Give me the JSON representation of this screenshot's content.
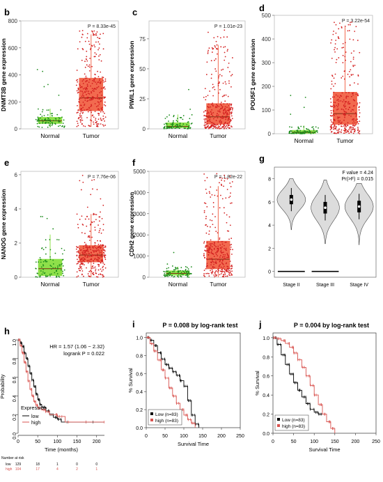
{
  "panels": {
    "b": {
      "letter": "b"
    },
    "c": {
      "letter": "c"
    },
    "d": {
      "letter": "d"
    },
    "e": {
      "letter": "e"
    },
    "f": {
      "letter": "f"
    },
    "g": {
      "letter": "g"
    },
    "h": {
      "letter": "h"
    },
    "i": {
      "letter": "i"
    },
    "j": {
      "letter": "j"
    }
  },
  "colors": {
    "normal_box": "#8ee04a",
    "normal_point": "#1a8a1a",
    "tumor_box": "#f26a4f",
    "tumor_point": "#d42020",
    "violin_fill": "#dcdcdc",
    "km_low": "#000000",
    "km_high": "#d9534f"
  },
  "chart_data": [
    {
      "id": "b",
      "type": "box",
      "ylabel": "DNMT3B gene expression",
      "ylim": [
        0,
        800
      ],
      "yticks": [
        0,
        200,
        400,
        600,
        800
      ],
      "pvalue": "P = 8.33e-45",
      "categories": [
        "Normal",
        "Tumor"
      ],
      "groups": [
        {
          "name": "Normal",
          "q1": 40,
          "median": 60,
          "q3": 85,
          "low": 10,
          "high": 150,
          "n": 90,
          "max_outlier": 460
        },
        {
          "name": "Tumor",
          "q1": 135,
          "median": 230,
          "q3": 375,
          "low": 15,
          "high": 700,
          "n": 320,
          "max_outlier": 730
        }
      ]
    },
    {
      "id": "c",
      "type": "box",
      "ylabel": "PIWIL1 gene expression",
      "ylim": [
        0,
        90
      ],
      "yticks": [
        0,
        25,
        50,
        75
      ],
      "pvalue": "P = 1.01e-23",
      "categories": [
        "Normal",
        "Tumor"
      ],
      "groups": [
        {
          "name": "Normal",
          "q1": 1,
          "median": 2,
          "q3": 5,
          "low": 0,
          "high": 12,
          "n": 90,
          "max_outlier": 62
        },
        {
          "name": "Tumor",
          "q1": 4,
          "median": 10,
          "q3": 21,
          "low": 0,
          "high": 70,
          "n": 320,
          "max_outlier": 85
        }
      ]
    },
    {
      "id": "d",
      "type": "box",
      "ylabel": "POU5F1 gene expression",
      "ylim": [
        0,
        500
      ],
      "yticks": [
        0,
        100,
        200,
        300,
        400,
        500
      ],
      "pvalue": "P = 3.22e-54",
      "categories": [
        "Normal",
        "Tumor"
      ],
      "groups": [
        {
          "name": "Normal",
          "q1": 2,
          "median": 6,
          "q3": 14,
          "low": 0,
          "high": 35,
          "n": 90,
          "max_outlier": 170
        },
        {
          "name": "Tumor",
          "q1": 40,
          "median": 85,
          "q3": 175,
          "low": 0,
          "high": 450,
          "n": 320,
          "max_outlier": 475
        }
      ]
    },
    {
      "id": "e",
      "type": "box",
      "ylabel": "NANOG gene expression",
      "ylim": [
        0,
        6.2
      ],
      "yticks": [
        0,
        2,
        4,
        6
      ],
      "pvalue": "P = 7.76e-06",
      "categories": [
        "Normal",
        "Tumor"
      ],
      "groups": [
        {
          "name": "Normal",
          "q1": 0.1,
          "median": 0.5,
          "q3": 1.05,
          "low": 0,
          "high": 2.5,
          "n": 90,
          "max_outlier": 4.5
        },
        {
          "name": "Tumor",
          "q1": 0.9,
          "median": 1.3,
          "q3": 1.85,
          "low": 0,
          "high": 3.7,
          "n": 320,
          "max_outlier": 6.1
        }
      ]
    },
    {
      "id": "f",
      "type": "box",
      "ylabel": "CDH2 gene expression",
      "ylim": [
        0,
        5000
      ],
      "yticks": [
        0,
        1000,
        2000,
        3000,
        4000,
        5000
      ],
      "pvalue": "P = 1.82e-22",
      "categories": [
        "Normal",
        "Tumor"
      ],
      "groups": [
        {
          "name": "Normal",
          "q1": 100,
          "median": 180,
          "q3": 300,
          "low": 0,
          "high": 500,
          "n": 90,
          "max_outlier": 1600
        },
        {
          "name": "Tumor",
          "q1": 400,
          "median": 850,
          "q3": 1700,
          "low": 0,
          "high": 4300,
          "n": 320,
          "max_outlier": 4900
        }
      ]
    },
    {
      "id": "g",
      "type": "violin",
      "ylim": [
        -0.5,
        9
      ],
      "yticks": [
        0,
        2,
        4,
        6,
        8
      ],
      "annotation": [
        "F value = 4.24",
        "Pr(>F) = 0.015"
      ],
      "categories": [
        "Stage II",
        "Stage III",
        "Stage IV"
      ],
      "groups": [
        {
          "name": "Stage II",
          "min": 3.6,
          "max": 8.0,
          "median": 6.2,
          "q1": 5.8,
          "q3": 6.6,
          "low_band": 0
        },
        {
          "name": "Stage III",
          "min": 2.4,
          "max": 7.9,
          "median": 5.5,
          "q1": 5.0,
          "q3": 6.0,
          "low_band": 0
        },
        {
          "name": "Stage IV",
          "min": 2.3,
          "max": 7.6,
          "median": 5.6,
          "q1": 5.1,
          "q3": 6.1
        }
      ]
    },
    {
      "id": "h",
      "type": "line",
      "title": "",
      "xlabel": "Time (months)",
      "ylabel": "Probability",
      "xlim": [
        0,
        220
      ],
      "ylim": [
        0,
        1
      ],
      "xticks": [
        0,
        50,
        100,
        150,
        200
      ],
      "yticks": [
        0,
        0.2,
        0.4,
        0.6,
        0.8,
        1.0
      ],
      "hr_text": "HR = 1.57 (1.06 − 2.32)",
      "logrank_text": "logrank P = 0.022",
      "legend_title": "Expression",
      "legend_position": "bottom-left",
      "series": [
        {
          "name": "low",
          "x": [
            0,
            5,
            10,
            15,
            20,
            25,
            30,
            35,
            40,
            45,
            50,
            55,
            60,
            70,
            80,
            90,
            100,
            110,
            220
          ],
          "y": [
            1.0,
            0.97,
            0.93,
            0.86,
            0.8,
            0.72,
            0.64,
            0.57,
            0.5,
            0.42,
            0.36,
            0.31,
            0.28,
            0.24,
            0.2,
            0.17,
            0.15,
            0.12,
            0.12
          ]
        },
        {
          "name": "high",
          "x": [
            0,
            5,
            10,
            15,
            20,
            25,
            30,
            35,
            40,
            45,
            50,
            60,
            70,
            80,
            100,
            120,
            220
          ],
          "y": [
            1.0,
            0.94,
            0.86,
            0.76,
            0.66,
            0.56,
            0.47,
            0.4,
            0.34,
            0.3,
            0.27,
            0.25,
            0.23,
            0.2,
            0.18,
            0.12,
            0.12
          ]
        }
      ],
      "risk_table": {
        "header": "Number at risk",
        "rows": [
          {
            "label": "low",
            "values": [
              "129",
              "18",
              "1",
              "0",
              "0"
            ]
          },
          {
            "label": "high",
            "values": [
              "104",
              "17",
              "4",
              "2",
              "1"
            ]
          }
        ]
      }
    },
    {
      "id": "i",
      "type": "line",
      "title": "P = 0.008 by log-rank test",
      "xlabel": "Survival Time",
      "ylabel": "% Survival",
      "xlim": [
        0,
        250
      ],
      "ylim": [
        0,
        1.05
      ],
      "xticks": [
        0,
        50,
        100,
        150,
        200,
        250
      ],
      "yticks": [
        0,
        0.2,
        0.4,
        0.6,
        0.8,
        1.0
      ],
      "legend_position": "bottom-left",
      "series": [
        {
          "name": "Low (n=83)",
          "x": [
            0,
            10,
            20,
            30,
            40,
            50,
            60,
            70,
            80,
            90,
            100,
            110,
            120,
            130,
            140
          ],
          "y": [
            1.0,
            0.97,
            0.91,
            0.83,
            0.76,
            0.7,
            0.66,
            0.62,
            0.58,
            0.52,
            0.46,
            0.3,
            0.14,
            0.04,
            0.0
          ]
        },
        {
          "name": "high (n=83)",
          "x": [
            0,
            10,
            20,
            30,
            40,
            50,
            60,
            70,
            80,
            90,
            100,
            110,
            120,
            130
          ],
          "y": [
            1.0,
            0.93,
            0.85,
            0.75,
            0.64,
            0.55,
            0.44,
            0.35,
            0.27,
            0.2,
            0.14,
            0.09,
            0.05,
            0.0
          ]
        }
      ]
    },
    {
      "id": "j",
      "type": "line",
      "title": "P = 0.004 by log-rank test",
      "xlabel": "Survival Time",
      "ylabel": "% Survival",
      "xlim": [
        0,
        250
      ],
      "ylim": [
        0,
        1.05
      ],
      "xticks": [
        0,
        50,
        100,
        150,
        200,
        250
      ],
      "yticks": [
        0,
        0.2,
        0.4,
        0.6,
        0.8,
        1.0
      ],
      "legend_position": "bottom-left",
      "series": [
        {
          "name": "Low (n=83)",
          "x": [
            0,
            10,
            20,
            30,
            40,
            50,
            60,
            70,
            80,
            90,
            100,
            110,
            120
          ],
          "y": [
            1.0,
            0.93,
            0.82,
            0.72,
            0.62,
            0.53,
            0.45,
            0.38,
            0.31,
            0.25,
            0.22,
            0.2,
            0.2
          ]
        },
        {
          "name": "high (n=83)",
          "x": [
            0,
            10,
            20,
            30,
            40,
            50,
            60,
            70,
            80,
            90,
            100,
            110,
            120,
            130,
            140,
            150
          ],
          "y": [
            1.0,
            0.99,
            0.97,
            0.94,
            0.9,
            0.84,
            0.77,
            0.69,
            0.6,
            0.5,
            0.4,
            0.3,
            0.2,
            0.12,
            0.05,
            0.0
          ]
        }
      ]
    }
  ]
}
